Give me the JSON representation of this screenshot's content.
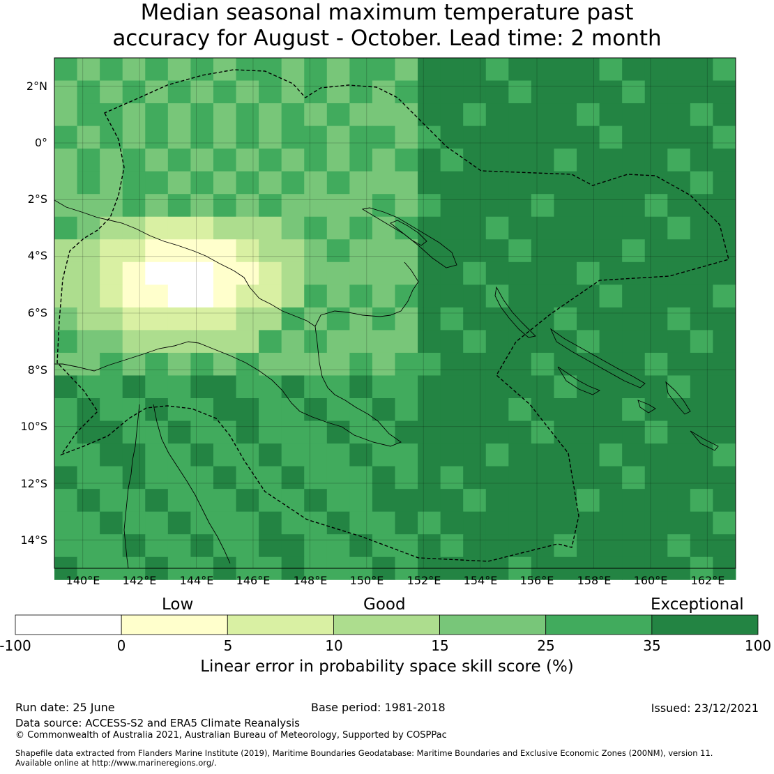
{
  "title": {
    "line1": "Median seasonal maximum temperature past",
    "line2": "accuracy for August - October. Lead time: 2 month"
  },
  "map": {
    "lon_range": [
      139,
      163
    ],
    "lat_range": [
      -15,
      3
    ],
    "lat_labels": [
      "2°N",
      "0°",
      "2°S",
      "4°S",
      "6°S",
      "8°S",
      "10°S",
      "12°S",
      "14°S"
    ],
    "lon_labels": [
      "140°E",
      "142°E",
      "144°E",
      "146°E",
      "148°E",
      "150°E",
      "152°E",
      "154°E",
      "156°E",
      "158°E",
      "160°E",
      "162°E"
    ],
    "grid_lines": true
  },
  "legend": {
    "categories": [
      "Low",
      "Good",
      "Exceptional"
    ],
    "bins": [
      {
        "from": "-100",
        "to": "0",
        "color": "#ffffff"
      },
      {
        "from": "0",
        "to": "5",
        "color": "#ffffcc"
      },
      {
        "from": "5",
        "to": "10",
        "color": "#d9f0a3"
      },
      {
        "from": "10",
        "to": "15",
        "color": "#addd8e"
      },
      {
        "from": "15",
        "to": "25",
        "color": "#78c679"
      },
      {
        "from": "25",
        "to": "35",
        "color": "#41ab5d"
      },
      {
        "from": "35",
        "to": "100",
        "color": "#238443"
      }
    ],
    "tick_labels": [
      "-100",
      "0",
      "5",
      "10",
      "15",
      "25",
      "35",
      "100"
    ],
    "title": "Linear error in probability space skill score (%)"
  },
  "footer": {
    "run_date": "Run date: 25 June",
    "base_period": "Base period: 1981-2018",
    "issued": "Issued: 23/12/2021",
    "data_source": "Data source: ACCESS-S2 and ERA5 Climate Reanalysis",
    "copyright": "© Commonwealth of Australia 2021, Australian Bureau of Meteorology, Supported by COSPPac",
    "shapefile_line1": "Shapefile data extracted from Flanders Marine Institute (2019), Maritime Boundaries Geodatabase: Maritime Boundaries and Exclusive Economic Zones (200NM), version 11.",
    "shapefile_line2": "Available online at http://www.marineregions.org/."
  }
}
